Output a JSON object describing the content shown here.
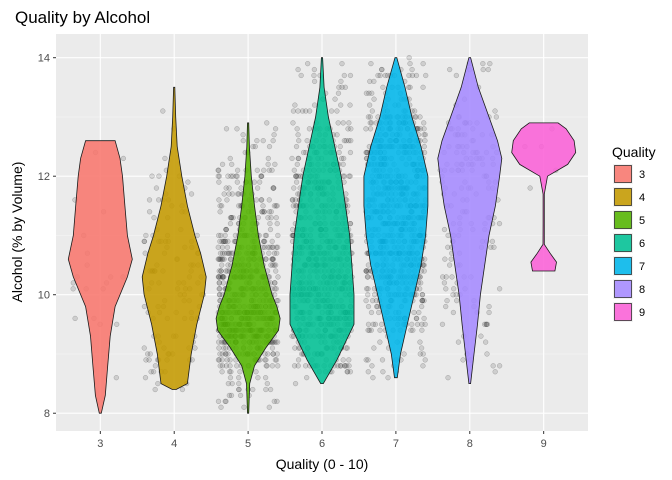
{
  "chart_data": {
    "type": "violin",
    "title": "Quality by Alcohol",
    "xlabel": "Quality (0 - 10)",
    "ylabel": "Alcohol (% by Volume)",
    "categories": [
      "3",
      "4",
      "5",
      "6",
      "7",
      "8",
      "9"
    ],
    "ylim": [
      7.7,
      14.4
    ],
    "yticks": [
      8,
      10,
      12,
      14
    ],
    "legend": {
      "title": "Quality",
      "position": "right",
      "entries": [
        "3",
        "4",
        "5",
        "6",
        "7",
        "8",
        "9"
      ]
    },
    "colors": [
      "#F8766D",
      "#C49A00",
      "#53B400",
      "#00C094",
      "#00B6EB",
      "#A58AFF",
      "#FB61D7"
    ],
    "grid": true,
    "jitter_points": true,
    "violins": [
      {
        "quality": "3",
        "min": 8.0,
        "max": 12.6,
        "density": [
          [
            8.0,
            0.02
          ],
          [
            8.3,
            0.1
          ],
          [
            8.8,
            0.15
          ],
          [
            9.3,
            0.2
          ],
          [
            9.8,
            0.3
          ],
          [
            10.3,
            0.55
          ],
          [
            10.6,
            0.65
          ],
          [
            11.0,
            0.55
          ],
          [
            11.5,
            0.5
          ],
          [
            12.0,
            0.45
          ],
          [
            12.3,
            0.4
          ],
          [
            12.6,
            0.3
          ]
        ]
      },
      {
        "quality": "4",
        "min": 8.4,
        "max": 13.5,
        "density": [
          [
            8.4,
            0.05
          ],
          [
            8.5,
            0.35
          ],
          [
            9.0,
            0.45
          ],
          [
            9.5,
            0.6
          ],
          [
            10.0,
            0.8
          ],
          [
            10.3,
            0.85
          ],
          [
            10.7,
            0.7
          ],
          [
            11.0,
            0.55
          ],
          [
            11.5,
            0.35
          ],
          [
            12.0,
            0.2
          ],
          [
            12.5,
            0.08
          ],
          [
            13.0,
            0.04
          ],
          [
            13.5,
            0.01
          ]
        ]
      },
      {
        "quality": "5",
        "min": 8.0,
        "max": 12.9,
        "density": [
          [
            8.0,
            0.01
          ],
          [
            8.5,
            0.05
          ],
          [
            8.8,
            0.2
          ],
          [
            9.1,
            0.55
          ],
          [
            9.4,
            0.95
          ],
          [
            9.6,
            1.0
          ],
          [
            9.8,
            0.9
          ],
          [
            10.0,
            0.75
          ],
          [
            10.5,
            0.5
          ],
          [
            11.0,
            0.32
          ],
          [
            11.5,
            0.2
          ],
          [
            12.0,
            0.1
          ],
          [
            12.5,
            0.04
          ],
          [
            12.9,
            0.01
          ]
        ]
      },
      {
        "quality": "6",
        "min": 8.5,
        "max": 14.0,
        "density": [
          [
            8.5,
            0.03
          ],
          [
            8.9,
            0.35
          ],
          [
            9.2,
            0.55
          ],
          [
            9.5,
            0.75
          ],
          [
            10.0,
            0.75
          ],
          [
            10.5,
            0.7
          ],
          [
            11.0,
            0.65
          ],
          [
            11.5,
            0.55
          ],
          [
            12.0,
            0.45
          ],
          [
            12.5,
            0.3
          ],
          [
            13.0,
            0.15
          ],
          [
            13.5,
            0.05
          ],
          [
            14.0,
            0.01
          ]
        ]
      },
      {
        "quality": "7",
        "min": 8.6,
        "max": 14.0,
        "density": [
          [
            8.6,
            0.03
          ],
          [
            9.0,
            0.1
          ],
          [
            9.5,
            0.25
          ],
          [
            10.0,
            0.4
          ],
          [
            10.5,
            0.55
          ],
          [
            11.0,
            0.65
          ],
          [
            11.5,
            0.7
          ],
          [
            12.0,
            0.7
          ],
          [
            12.5,
            0.55
          ],
          [
            13.0,
            0.35
          ],
          [
            13.5,
            0.2
          ],
          [
            14.0,
            0.02
          ]
        ]
      },
      {
        "quality": "8",
        "min": 8.5,
        "max": 14.0,
        "density": [
          [
            8.5,
            0.02
          ],
          [
            9.0,
            0.1
          ],
          [
            9.5,
            0.18
          ],
          [
            10.0,
            0.25
          ],
          [
            10.5,
            0.35
          ],
          [
            11.0,
            0.45
          ],
          [
            11.5,
            0.6
          ],
          [
            12.0,
            0.7
          ],
          [
            12.3,
            0.75
          ],
          [
            12.6,
            0.65
          ],
          [
            13.0,
            0.45
          ],
          [
            13.5,
            0.2
          ],
          [
            14.0,
            0.02
          ]
        ]
      },
      {
        "quality": "9",
        "min": 10.4,
        "max": 12.9,
        "density": [
          [
            10.4,
            0.35
          ],
          [
            10.55,
            0.4
          ],
          [
            10.7,
            0.2
          ],
          [
            10.85,
            0.02
          ],
          [
            11.2,
            0.008
          ],
          [
            11.7,
            0.01
          ],
          [
            12.0,
            0.12
          ],
          [
            12.2,
            0.75
          ],
          [
            12.4,
            1.0
          ],
          [
            12.6,
            0.95
          ],
          [
            12.8,
            0.7
          ],
          [
            12.9,
            0.45
          ]
        ]
      }
    ]
  }
}
